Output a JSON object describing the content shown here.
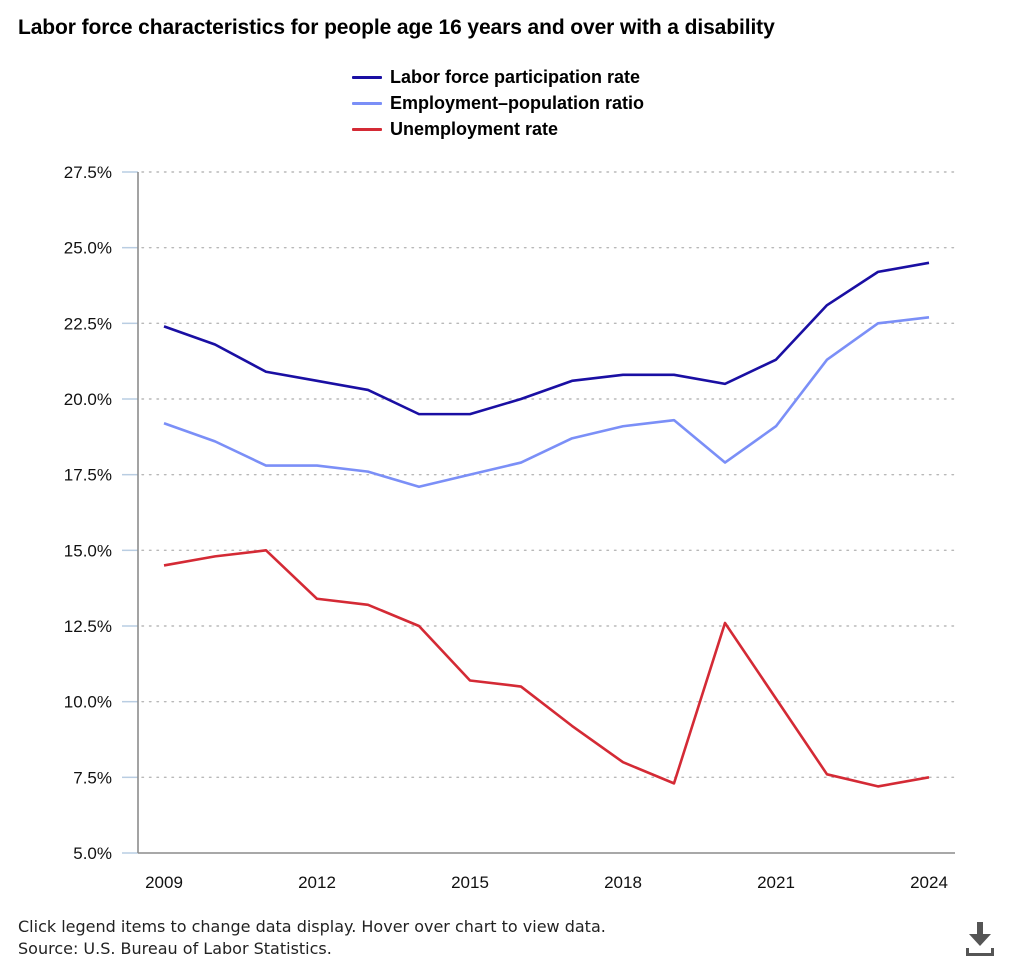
{
  "chart_data": {
    "type": "line",
    "title": "Labor force characteristics for people age 16 years and over with a disability",
    "xlabel": "",
    "ylabel": "",
    "x": [
      2009,
      2010,
      2011,
      2012,
      2013,
      2014,
      2015,
      2016,
      2017,
      2018,
      2019,
      2020,
      2021,
      2022,
      2023,
      2024
    ],
    "x_tick_labels": [
      "2009",
      "2012",
      "2015",
      "2018",
      "2021",
      "2024"
    ],
    "x_ticks": [
      2009,
      2012,
      2015,
      2018,
      2021,
      2024
    ],
    "xlim": [
      2009,
      2024
    ],
    "ylim": [
      5.0,
      27.5
    ],
    "y_ticks": [
      5.0,
      7.5,
      10.0,
      12.5,
      15.0,
      17.5,
      20.0,
      22.5,
      25.0,
      27.5
    ],
    "y_tick_labels": [
      "5.0%",
      "7.5%",
      "10.0%",
      "12.5%",
      "15.0%",
      "17.5%",
      "20.0%",
      "22.5%",
      "25.0%",
      "27.5%"
    ],
    "grid": "horizontal-dotted",
    "legend_placement": "top-center",
    "series": [
      {
        "name": "Labor force participation rate",
        "color": "#1a0fa3",
        "values": [
          22.4,
          21.8,
          20.9,
          20.6,
          20.3,
          19.5,
          19.5,
          20.0,
          20.6,
          20.8,
          20.8,
          20.5,
          21.3,
          23.1,
          24.2,
          24.5
        ]
      },
      {
        "name": "Employment–population ratio",
        "color": "#7b8ff7",
        "values": [
          19.2,
          18.6,
          17.8,
          17.8,
          17.6,
          17.1,
          17.5,
          17.9,
          18.7,
          19.1,
          19.3,
          17.9,
          19.1,
          21.3,
          22.5,
          22.7
        ]
      },
      {
        "name": "Unemployment rate",
        "color": "#d42a35",
        "values": [
          14.5,
          14.8,
          15.0,
          13.4,
          13.2,
          12.5,
          10.7,
          10.5,
          9.2,
          8.0,
          7.3,
          12.6,
          10.1,
          7.6,
          7.2,
          7.5
        ]
      }
    ]
  },
  "header": {
    "title": "Labor force characteristics for people age 16 years and over with a disability"
  },
  "legend": {
    "items": [
      {
        "label": "Labor force participation rate",
        "color": "#1a0fa3"
      },
      {
        "label": "Employment–population ratio",
        "color": "#7b8ff7"
      },
      {
        "label": "Unemployment rate",
        "color": "#d42a35"
      }
    ]
  },
  "footer": {
    "instructions": "Click legend items to change data display. Hover over chart to view data.",
    "source": "Source: U.S. Bureau of Labor Statistics."
  },
  "icons": {
    "download": "download-icon"
  },
  "colors": {
    "axis": "#8c8c8c",
    "grid": "#b8b8b8",
    "tick_mark": "#b9cde2"
  }
}
